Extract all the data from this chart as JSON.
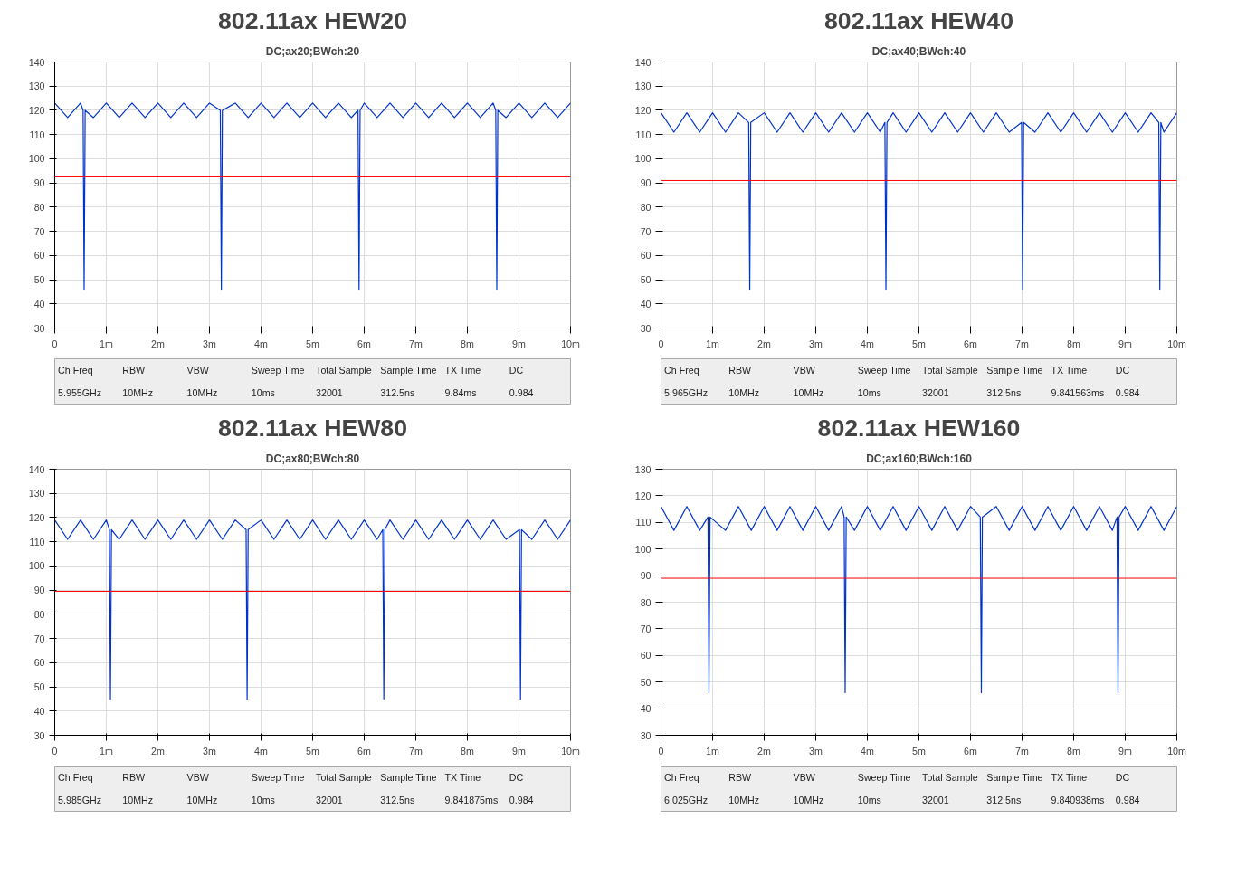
{
  "chart_data": [
    {
      "type": "line",
      "title": "802.11ax HEW20",
      "subtitle": "DC;ax20;BWch:20",
      "xlim": [
        0,
        10
      ],
      "xticks": [
        {
          "value": 0,
          "label": "0"
        },
        {
          "value": 1,
          "label": "1m"
        },
        {
          "value": 2,
          "label": "2m"
        },
        {
          "value": 3,
          "label": "3m"
        },
        {
          "value": 4,
          "label": "4m"
        },
        {
          "value": 5,
          "label": "5m"
        },
        {
          "value": 6,
          "label": "6m"
        },
        {
          "value": 7,
          "label": "7m"
        },
        {
          "value": 8,
          "label": "8m"
        },
        {
          "value": 9,
          "label": "9m"
        },
        {
          "value": 10,
          "label": "10m"
        }
      ],
      "ylim": [
        30,
        140
      ],
      "yticks": [
        30,
        40,
        50,
        60,
        70,
        80,
        90,
        100,
        110,
        120,
        130,
        140
      ],
      "grid": true,
      "marker": "none",
      "line_style": "solid",
      "series": [
        {
          "color": "#0033cc",
          "x": [
            0,
            0.25,
            0.5,
            0.55,
            0.57,
            0.59,
            0.75,
            1,
            1.25,
            1.5,
            1.75,
            2,
            2.25,
            2.5,
            2.75,
            3,
            3.21,
            3.23,
            3.25,
            3.5,
            3.75,
            4,
            4.25,
            4.5,
            4.75,
            5,
            5.25,
            5.5,
            5.75,
            5.88,
            5.9,
            5.92,
            6,
            6.25,
            6.5,
            6.75,
            7,
            7.25,
            7.5,
            7.75,
            8,
            8.25,
            8.5,
            8.55,
            8.57,
            8.59,
            8.75,
            9,
            9.25,
            9.5,
            9.75,
            10
          ],
          "values": [
            123,
            117,
            123,
            120,
            46,
            120,
            117,
            123,
            117,
            123,
            117,
            123,
            117,
            123,
            117,
            123,
            120,
            46,
            120,
            123,
            117,
            123,
            117,
            123,
            117,
            123,
            117,
            123,
            117,
            120,
            46,
            120,
            123,
            117,
            123,
            117,
            123,
            117,
            123,
            117,
            123,
            117,
            123,
            120,
            46,
            120,
            117,
            123,
            117,
            123,
            117,
            123
          ]
        }
      ],
      "ref_lines": [
        {
          "axis": "y",
          "value": 92.5,
          "color": "#ff0000"
        }
      ],
      "annotations": [
        "Ch Freq",
        "RBW",
        "VBW",
        "Sweep Time",
        "Total Sample",
        "Sample Time",
        "TX Time",
        "DC",
        "5.955GHz",
        "10MHz",
        "10MHz",
        "10ms",
        "32001",
        "312.5ns",
        "9.84ms",
        "0.984"
      ]
    },
    {
      "type": "line",
      "title": "802.11ax HEW40",
      "subtitle": "DC;ax40;BWch:40",
      "xlim": [
        0,
        10
      ],
      "xticks": [
        {
          "value": 0,
          "label": "0"
        },
        {
          "value": 1,
          "label": "1m"
        },
        {
          "value": 2,
          "label": "2m"
        },
        {
          "value": 3,
          "label": "3m"
        },
        {
          "value": 4,
          "label": "4m"
        },
        {
          "value": 5,
          "label": "5m"
        },
        {
          "value": 6,
          "label": "6m"
        },
        {
          "value": 7,
          "label": "7m"
        },
        {
          "value": 8,
          "label": "8m"
        },
        {
          "value": 9,
          "label": "9m"
        },
        {
          "value": 10,
          "label": "10m"
        }
      ],
      "ylim": [
        30,
        140
      ],
      "yticks": [
        30,
        40,
        50,
        60,
        70,
        80,
        90,
        100,
        110,
        120,
        130,
        140
      ],
      "grid": true,
      "marker": "none",
      "line_style": "solid",
      "series": [
        {
          "color": "#0033cc",
          "x": [
            0,
            0.25,
            0.5,
            0.75,
            1,
            1.25,
            1.5,
            1.7,
            1.72,
            1.74,
            2,
            2.25,
            2.5,
            2.75,
            3,
            3.25,
            3.5,
            3.75,
            4,
            4.25,
            4.34,
            4.36,
            4.38,
            4.5,
            4.75,
            5,
            5.25,
            5.5,
            5.75,
            6,
            6.25,
            6.5,
            6.75,
            6.99,
            7.01,
            7.03,
            7.25,
            7.5,
            7.75,
            8,
            8.25,
            8.5,
            8.75,
            9,
            9.25,
            9.5,
            9.65,
            9.67,
            9.69,
            9.75,
            10
          ],
          "values": [
            119,
            111,
            119,
            111,
            119,
            111,
            119,
            115,
            46,
            115,
            119,
            111,
            119,
            111,
            119,
            111,
            119,
            111,
            119,
            111,
            115,
            46,
            115,
            119,
            111,
            119,
            111,
            119,
            111,
            119,
            111,
            119,
            111,
            115,
            46,
            115,
            111,
            119,
            111,
            119,
            111,
            119,
            111,
            119,
            111,
            119,
            115,
            46,
            115,
            111,
            119
          ]
        }
      ],
      "ref_lines": [
        {
          "axis": "y",
          "value": 91,
          "color": "#ff0000"
        }
      ],
      "annotations": [
        "Ch Freq",
        "RBW",
        "VBW",
        "Sweep Time",
        "Total Sample",
        "Sample Time",
        "TX Time",
        "DC",
        "5.965GHz",
        "10MHz",
        "10MHz",
        "10ms",
        "32001",
        "312.5ns",
        "9.841563ms",
        "0.984"
      ]
    },
    {
      "type": "line",
      "title": "802.11ax HEW80",
      "subtitle": "DC;ax80;BWch:80",
      "xlim": [
        0,
        10
      ],
      "xticks": [
        {
          "value": 0,
          "label": "0"
        },
        {
          "value": 1,
          "label": "1m"
        },
        {
          "value": 2,
          "label": "2m"
        },
        {
          "value": 3,
          "label": "3m"
        },
        {
          "value": 4,
          "label": "4m"
        },
        {
          "value": 5,
          "label": "5m"
        },
        {
          "value": 6,
          "label": "6m"
        },
        {
          "value": 7,
          "label": "7m"
        },
        {
          "value": 8,
          "label": "8m"
        },
        {
          "value": 9,
          "label": "9m"
        },
        {
          "value": 10,
          "label": "10m"
        }
      ],
      "ylim": [
        30,
        140
      ],
      "yticks": [
        30,
        40,
        50,
        60,
        70,
        80,
        90,
        100,
        110,
        120,
        130,
        140
      ],
      "grid": true,
      "marker": "none",
      "line_style": "solid",
      "series": [
        {
          "color": "#0033cc",
          "x": [
            0,
            0.25,
            0.5,
            0.75,
            1,
            1.06,
            1.08,
            1.1,
            1.25,
            1.5,
            1.75,
            2,
            2.25,
            2.5,
            2.75,
            3,
            3.25,
            3.5,
            3.71,
            3.73,
            3.75,
            4,
            4.25,
            4.5,
            4.75,
            5,
            5.25,
            5.5,
            5.75,
            6,
            6.25,
            6.36,
            6.38,
            6.4,
            6.5,
            6.75,
            7,
            7.25,
            7.5,
            7.75,
            8,
            8.25,
            8.5,
            8.75,
            9.01,
            9.03,
            9.05,
            9.25,
            9.5,
            9.75,
            10
          ],
          "values": [
            119,
            111,
            119,
            111,
            119,
            115,
            45,
            115,
            111,
            119,
            111,
            119,
            111,
            119,
            111,
            119,
            111,
            119,
            115,
            45,
            115,
            119,
            111,
            119,
            111,
            119,
            111,
            119,
            111,
            119,
            111,
            115,
            45,
            115,
            119,
            111,
            119,
            111,
            119,
            111,
            119,
            111,
            119,
            111,
            115,
            45,
            115,
            111,
            119,
            111,
            119
          ]
        }
      ],
      "ref_lines": [
        {
          "axis": "y",
          "value": 89.5,
          "color": "#ff0000"
        }
      ],
      "annotations": [
        "Ch Freq",
        "RBW",
        "VBW",
        "Sweep Time",
        "Total Sample",
        "Sample Time",
        "TX Time",
        "DC",
        "5.985GHz",
        "10MHz",
        "10MHz",
        "10ms",
        "32001",
        "312.5ns",
        "9.841875ms",
        "0.984"
      ]
    },
    {
      "type": "line",
      "title": "802.11ax HEW160",
      "subtitle": "DC;ax160;BWch:160",
      "xlim": [
        0,
        10
      ],
      "xticks": [
        {
          "value": 0,
          "label": "0"
        },
        {
          "value": 1,
          "label": "1m"
        },
        {
          "value": 2,
          "label": "2m"
        },
        {
          "value": 3,
          "label": "3m"
        },
        {
          "value": 4,
          "label": "4m"
        },
        {
          "value": 5,
          "label": "5m"
        },
        {
          "value": 6,
          "label": "6m"
        },
        {
          "value": 7,
          "label": "7m"
        },
        {
          "value": 8,
          "label": "8m"
        },
        {
          "value": 9,
          "label": "9m"
        },
        {
          "value": 10,
          "label": "10m"
        }
      ],
      "ylim": [
        30,
        130
      ],
      "yticks": [
        30,
        40,
        50,
        60,
        70,
        80,
        90,
        100,
        110,
        120,
        130
      ],
      "grid": true,
      "marker": "none",
      "line_style": "solid",
      "series": [
        {
          "color": "#0033cc",
          "x": [
            0,
            0.25,
            0.5,
            0.75,
            0.91,
            0.93,
            0.95,
            1.25,
            1.5,
            1.75,
            2,
            2.25,
            2.5,
            2.75,
            3,
            3.25,
            3.5,
            3.55,
            3.57,
            3.59,
            3.75,
            4,
            4.25,
            4.5,
            4.75,
            5,
            5.25,
            5.5,
            5.75,
            6,
            6.19,
            6.21,
            6.23,
            6.5,
            6.75,
            7,
            7.25,
            7.5,
            7.75,
            8,
            8.25,
            8.5,
            8.75,
            8.84,
            8.86,
            8.88,
            9,
            9.25,
            9.5,
            9.75,
            10
          ],
          "values": [
            116,
            107,
            116,
            107,
            112,
            46,
            112,
            107,
            116,
            107,
            116,
            107,
            116,
            107,
            116,
            107,
            116,
            112,
            46,
            112,
            107,
            116,
            107,
            116,
            107,
            116,
            107,
            116,
            107,
            116,
            112,
            46,
            112,
            116,
            107,
            116,
            107,
            116,
            107,
            116,
            107,
            116,
            107,
            112,
            46,
            112,
            116,
            107,
            116,
            107,
            116
          ]
        }
      ],
      "ref_lines": [
        {
          "axis": "y",
          "value": 89,
          "color": "#ff0000"
        }
      ],
      "annotations": [
        "Ch Freq",
        "RBW",
        "VBW",
        "Sweep Time",
        "Total Sample",
        "Sample Time",
        "TX Time",
        "DC",
        "6.025GHz",
        "10MHz",
        "10MHz",
        "10ms",
        "32001",
        "312.5ns",
        "9.840938ms",
        "0.984"
      ]
    }
  ]
}
